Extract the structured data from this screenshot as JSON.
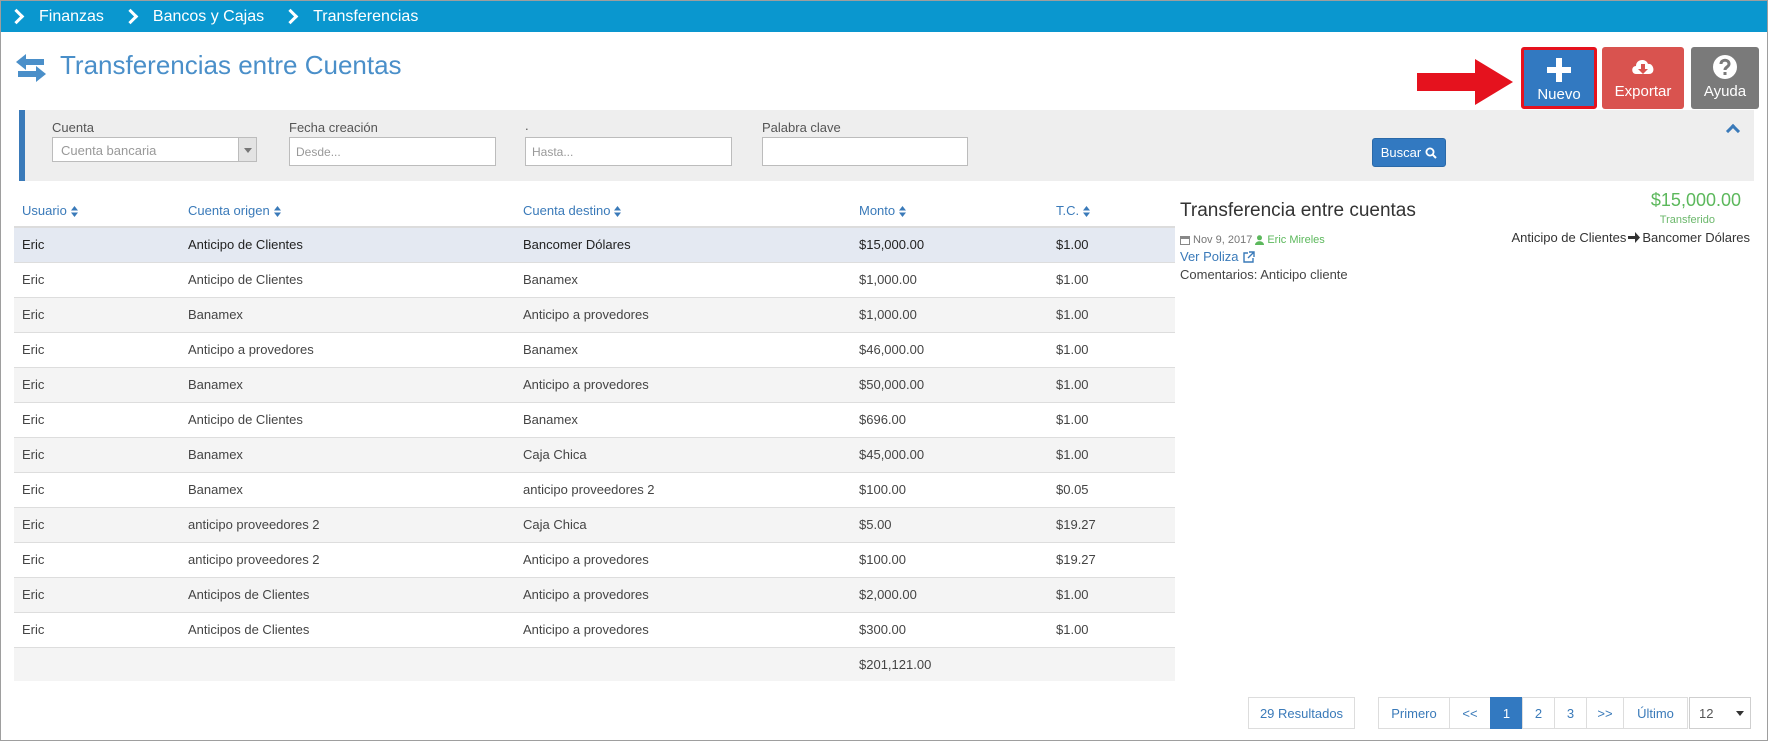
{
  "breadcrumb": [
    "Finanzas",
    "Bancos y Cajas",
    "Transferencias"
  ],
  "page": {
    "title": "Transferencias entre Cuentas",
    "title_icon": "exchange-icon"
  },
  "toolbar": {
    "nuevo_label": "Nuevo",
    "exportar_label": "Exportar",
    "ayuda_label": "Ayuda",
    "colors": {
      "nuevo": "#3279c1",
      "exportar": "#d9534f",
      "ayuda": "#7a7a7a",
      "highlight": "#e5121e"
    }
  },
  "filters": {
    "cuenta_label": "Cuenta",
    "cuenta_placeholder": "Cuenta bancaria",
    "fecha_label": "Fecha creación",
    "desde_placeholder": "Desde...",
    "hasta_label": ".",
    "hasta_placeholder": "Hasta...",
    "palabra_label": "Palabra clave",
    "palabra_value": "",
    "buscar_label": "Buscar"
  },
  "table": {
    "columns": [
      "Usuario",
      "Cuenta origen",
      "Cuenta destino",
      "Monto",
      "T.C."
    ],
    "rows": [
      [
        "Eric",
        "Anticipo de Clientes",
        "Bancomer Dólares",
        "$15,000.00",
        "$1.00"
      ],
      [
        "Eric",
        "Anticipo de Clientes",
        "Banamex",
        "$1,000.00",
        "$1.00"
      ],
      [
        "Eric",
        "Banamex",
        "Anticipo a provedores",
        "$1,000.00",
        "$1.00"
      ],
      [
        "Eric",
        "Anticipo a provedores",
        "Banamex",
        "$46,000.00",
        "$1.00"
      ],
      [
        "Eric",
        "Banamex",
        "Anticipo a provedores",
        "$50,000.00",
        "$1.00"
      ],
      [
        "Eric",
        "Anticipo de Clientes",
        "Banamex",
        "$696.00",
        "$1.00"
      ],
      [
        "Eric",
        "Banamex",
        "Caja Chica",
        "$45,000.00",
        "$1.00"
      ],
      [
        "Eric",
        "Banamex",
        "anticipo proveedores 2",
        "$100.00",
        "$0.05"
      ],
      [
        "Eric",
        "anticipo proveedores 2",
        "Caja Chica",
        "$5.00",
        "$19.27"
      ],
      [
        "Eric",
        "anticipo proveedores 2",
        "Anticipo a provedores",
        "$100.00",
        "$19.27"
      ],
      [
        "Eric",
        "Anticipos de Clientes",
        "Anticipo a provedores",
        "$2,000.00",
        "$1.00"
      ],
      [
        "Eric",
        "Anticipos de Clientes",
        "Anticipo a provedores",
        "$300.00",
        "$1.00"
      ]
    ],
    "total": "$201,121.00"
  },
  "detail": {
    "title": "Transferencia entre cuentas",
    "amount": "$15,000.00",
    "status": "Transferido",
    "origin": "Anticipo de Clientes",
    "destination": "Bancomer Dólares",
    "date": "Nov 9, 2017",
    "author": "Eric Mireles",
    "link_label": "Ver Poliza",
    "comments": "Comentarios: Anticipo cliente"
  },
  "pagination": {
    "results": "29 Resultados",
    "first": "Primero",
    "prev": "<<",
    "pages": [
      "1",
      "2",
      "3"
    ],
    "current": "1",
    "next": ">>",
    "last": "Último",
    "page_size": "12"
  }
}
